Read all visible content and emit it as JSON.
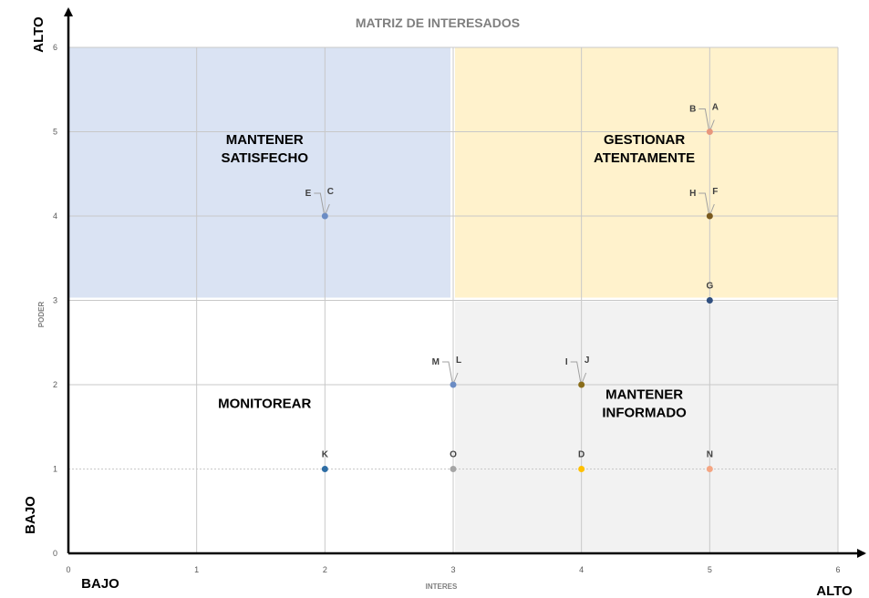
{
  "chart_data": {
    "type": "scatter",
    "title": "MATRIZ DE INTERESADOS",
    "xlabel": "INTERES",
    "ylabel": "PODER",
    "xlim": [
      0,
      6
    ],
    "ylim": [
      0,
      6
    ],
    "x_ticks": [
      "0",
      "1",
      "2",
      "3",
      "4",
      "5",
      "6"
    ],
    "y_ticks": [
      "0",
      "1",
      "2",
      "3",
      "4",
      "5",
      "6"
    ],
    "grid": true,
    "axis_extremes": {
      "y_high": "ALTO",
      "y_low": "BAJO",
      "x_low": "BAJO",
      "x_high": "ALTO"
    },
    "quadrants": [
      {
        "name": "top-left",
        "lines": [
          "MANTENER",
          "SATISFECHO"
        ],
        "color": "#dae3f3"
      },
      {
        "name": "top-right",
        "lines": [
          "GESTIONAR",
          "ATENTAMENTE"
        ],
        "color": "#fff2cc"
      },
      {
        "name": "bottom-left",
        "lines": [
          "MONITOREAR"
        ],
        "color": "#ffffff"
      },
      {
        "name": "bottom-right",
        "lines": [
          "MANTENER",
          "INFORMADO"
        ],
        "color": "#f2f2f2"
      }
    ],
    "points": [
      {
        "label": "A",
        "x": 5,
        "y": 5,
        "color": "#e8967c"
      },
      {
        "label": "B",
        "x": 5,
        "y": 5,
        "color": "#e8967c"
      },
      {
        "label": "C",
        "x": 2,
        "y": 4,
        "color": "#6b8cc4"
      },
      {
        "label": "E",
        "x": 2,
        "y": 4,
        "color": "#6b8cc4"
      },
      {
        "label": "F",
        "x": 5,
        "y": 4,
        "color": "#7a5a1e"
      },
      {
        "label": "H",
        "x": 5,
        "y": 4,
        "color": "#7a5a1e"
      },
      {
        "label": "G",
        "x": 5,
        "y": 3,
        "color": "#2f4f7f"
      },
      {
        "label": "L",
        "x": 3,
        "y": 2,
        "color": "#6b8cc4"
      },
      {
        "label": "M",
        "x": 3,
        "y": 2,
        "color": "#6b8cc4"
      },
      {
        "label": "J",
        "x": 4,
        "y": 2,
        "color": "#8a6d1a"
      },
      {
        "label": "I",
        "x": 4,
        "y": 2,
        "color": "#8a6d1a"
      },
      {
        "label": "K",
        "x": 2,
        "y": 1,
        "color": "#2e6da4"
      },
      {
        "label": "O",
        "x": 3,
        "y": 1,
        "color": "#a5a5a5"
      },
      {
        "label": "D",
        "x": 4,
        "y": 1,
        "color": "#ffc000"
      },
      {
        "label": "N",
        "x": 5,
        "y": 1,
        "color": "#f4a582"
      }
    ]
  }
}
